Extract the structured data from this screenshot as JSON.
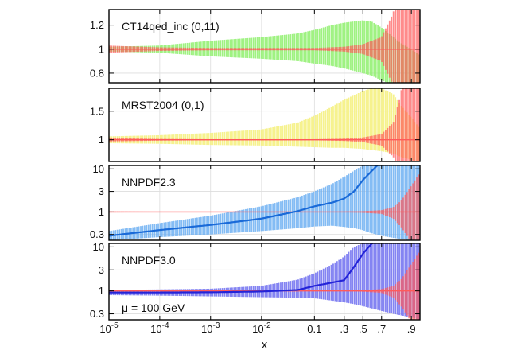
{
  "chart_data": {
    "type": "area",
    "xlabel": "x",
    "x_scale": "logit",
    "xlim": [
      1e-05,
      0.93
    ],
    "x_ticks": [
      {
        "value": 1e-05,
        "label": "10-5"
      },
      {
        "value": 0.0001,
        "label": "10-4"
      },
      {
        "value": 0.001,
        "label": "10-3"
      },
      {
        "value": 0.01,
        "label": "10-2"
      },
      {
        "value": 0.1,
        "label": "0.1"
      },
      {
        "value": 0.3,
        "label": ".3"
      },
      {
        "value": 0.5,
        "label": ".5"
      },
      {
        "value": 0.7,
        "label": ".7"
      },
      {
        "value": 0.9,
        "label": ".9"
      }
    ],
    "annotation": "μ = 100 GeV",
    "grid": true,
    "reference": {
      "name": "CT14qed_inc (0,11)",
      "color": "#ff5a5a",
      "x": [
        1e-05,
        0.0001,
        0.001,
        0.01,
        0.1,
        0.3,
        0.5,
        0.7,
        0.8,
        0.85,
        0.9,
        0.93
      ],
      "lower": [
        0.97,
        0.985,
        0.99,
        0.99,
        0.99,
        0.98,
        0.96,
        0.9,
        0.7,
        0.45,
        0.2,
        0.1
      ],
      "upper": [
        1.03,
        1.015,
        1.01,
        1.01,
        1.01,
        1.02,
        1.04,
        1.1,
        1.3,
        1.8,
        4.0,
        8.0
      ]
    },
    "panels": [
      {
        "label": "CT14qed_inc (0,11)",
        "yscale": "linear",
        "ylim": [
          0.72,
          1.33
        ],
        "yticks": [
          0.8,
          1,
          1.2
        ],
        "ytick_labels": [
          "0.8",
          "1",
          "1.2"
        ],
        "band": {
          "color": "#8ef06c",
          "x": [
            1e-05,
            0.0001,
            0.001,
            0.01,
            0.05,
            0.1,
            0.2,
            0.3,
            0.5,
            0.6,
            0.7,
            0.8,
            0.85,
            0.9,
            0.93
          ],
          "central": [
            1.0,
            1.0,
            1.0,
            1.0,
            1.0,
            1.0,
            1.0,
            1.0,
            0.98,
            0.97,
            0.95,
            0.9,
            0.85,
            0.8,
            0.75
          ],
          "lower": [
            0.98,
            0.97,
            0.94,
            0.92,
            0.9,
            0.88,
            0.86,
            0.84,
            0.8,
            0.78,
            0.74,
            0.7,
            0.65,
            0.6,
            0.6
          ],
          "upper": [
            1.02,
            1.03,
            1.07,
            1.1,
            1.13,
            1.16,
            1.2,
            1.22,
            1.24,
            1.23,
            1.18,
            1.1,
            1.05,
            1.0,
            0.95
          ]
        }
      },
      {
        "label": "MRST2004 (0,1)",
        "yscale": "linear",
        "ylim": [
          0.62,
          1.9
        ],
        "yticks": [
          1,
          1.5
        ],
        "ytick_labels": [
          "1",
          "1.5"
        ],
        "band": {
          "color": "#f5f07a",
          "x": [
            1e-05,
            0.0001,
            0.001,
            0.01,
            0.05,
            0.1,
            0.2,
            0.3,
            0.5,
            0.6,
            0.7,
            0.8,
            0.85,
            0.9,
            0.93
          ],
          "central": [
            1.0,
            1.0,
            1.0,
            1.0,
            1.0,
            1.0,
            1.0,
            1.0,
            1.0,
            1.0,
            1.0,
            1.0,
            1.0,
            1.0,
            1.0
          ],
          "lower": [
            0.94,
            0.93,
            0.91,
            0.9,
            0.88,
            0.87,
            0.86,
            0.86,
            0.84,
            0.82,
            0.8,
            0.76,
            0.7,
            0.65,
            0.6
          ],
          "upper": [
            1.06,
            1.08,
            1.12,
            1.18,
            1.3,
            1.42,
            1.58,
            1.7,
            1.85,
            1.9,
            1.9,
            1.8,
            1.6,
            1.4,
            1.2
          ]
        }
      },
      {
        "label": "NNPDF2.3",
        "yscale": "log",
        "ylim": [
          0.22,
          12
        ],
        "yticks": [
          0.3,
          1,
          3,
          10
        ],
        "ytick_labels": [
          "0.3",
          "1",
          "3",
          "10"
        ],
        "band": {
          "color": "#6fb0f2",
          "line_color": "#1a6ad8",
          "x": [
            1e-05,
            0.0001,
            0.001,
            0.01,
            0.05,
            0.1,
            0.2,
            0.3,
            0.4,
            0.5,
            0.6,
            0.7,
            0.8,
            0.9,
            0.93
          ],
          "central": [
            0.28,
            0.38,
            0.5,
            0.7,
            1.05,
            1.35,
            1.65,
            2.05,
            3.0,
            5.5,
            9.0,
            15.0,
            20.0,
            25.0,
            30.0
          ],
          "lower": [
            0.22,
            0.26,
            0.3,
            0.36,
            0.42,
            0.46,
            0.48,
            0.45,
            0.42,
            0.38,
            0.32,
            0.28,
            0.25,
            0.22,
            0.22
          ],
          "upper": [
            0.36,
            0.55,
            0.82,
            1.35,
            2.2,
            3.0,
            4.5,
            6.5,
            9.0,
            12.0,
            12.0,
            12.0,
            12.0,
            12.0,
            12.0
          ]
        }
      },
      {
        "label": "NNPDF3.0",
        "yscale": "log",
        "ylim": [
          0.22,
          12
        ],
        "yticks": [
          0.3,
          1,
          3,
          10
        ],
        "ytick_labels": [
          "0.3",
          "1",
          "3",
          "10"
        ],
        "band": {
          "color": "#6f6ff0",
          "line_color": "#2424d8",
          "x": [
            1e-05,
            0.0001,
            0.001,
            0.01,
            0.05,
            0.1,
            0.2,
            0.3,
            0.4,
            0.5,
            0.6,
            0.7,
            0.8,
            0.9,
            0.93
          ],
          "central": [
            0.92,
            0.92,
            0.93,
            0.97,
            1.05,
            1.3,
            1.55,
            1.75,
            3.5,
            7.0,
            12.0,
            15.0,
            18.0,
            20.0,
            22.0
          ],
          "lower": [
            0.8,
            0.78,
            0.75,
            0.72,
            0.7,
            0.68,
            0.6,
            0.55,
            0.5,
            0.45,
            0.4,
            0.35,
            0.3,
            0.25,
            0.22
          ],
          "upper": [
            1.05,
            1.08,
            1.12,
            1.3,
            1.8,
            2.5,
            4.0,
            6.0,
            10.0,
            12.0,
            12.0,
            12.0,
            12.0,
            12.0,
            12.0
          ]
        }
      }
    ]
  }
}
